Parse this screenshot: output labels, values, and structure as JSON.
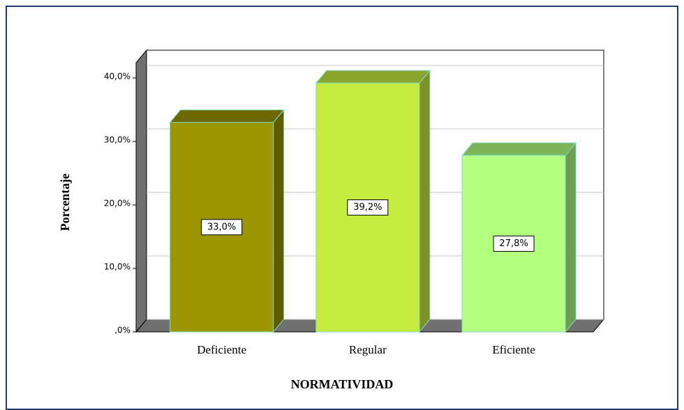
{
  "chart_data": {
    "type": "bar",
    "categories": [
      "Deficiente",
      "Regular",
      "Eficiente"
    ],
    "values": [
      33.0,
      39.2,
      27.8
    ],
    "value_labels": [
      "33,0%",
      "39,2%",
      "27,8%"
    ],
    "colors": [
      "#9b9600",
      "#c5ec3e",
      "#b4ff80"
    ],
    "ylim": [
      0,
      42.4
    ],
    "yticks": [
      {
        "value": 0,
        "label": ",0%"
      },
      {
        "value": 10,
        "label": "10,0%"
      },
      {
        "value": 20,
        "label": "20,0%"
      },
      {
        "value": 30,
        "label": "30,0%"
      },
      {
        "value": 40,
        "label": "40,0%"
      }
    ],
    "ylabel": "Porcentaje",
    "xlabel": "NORMATIVIDAD",
    "grid": true
  }
}
